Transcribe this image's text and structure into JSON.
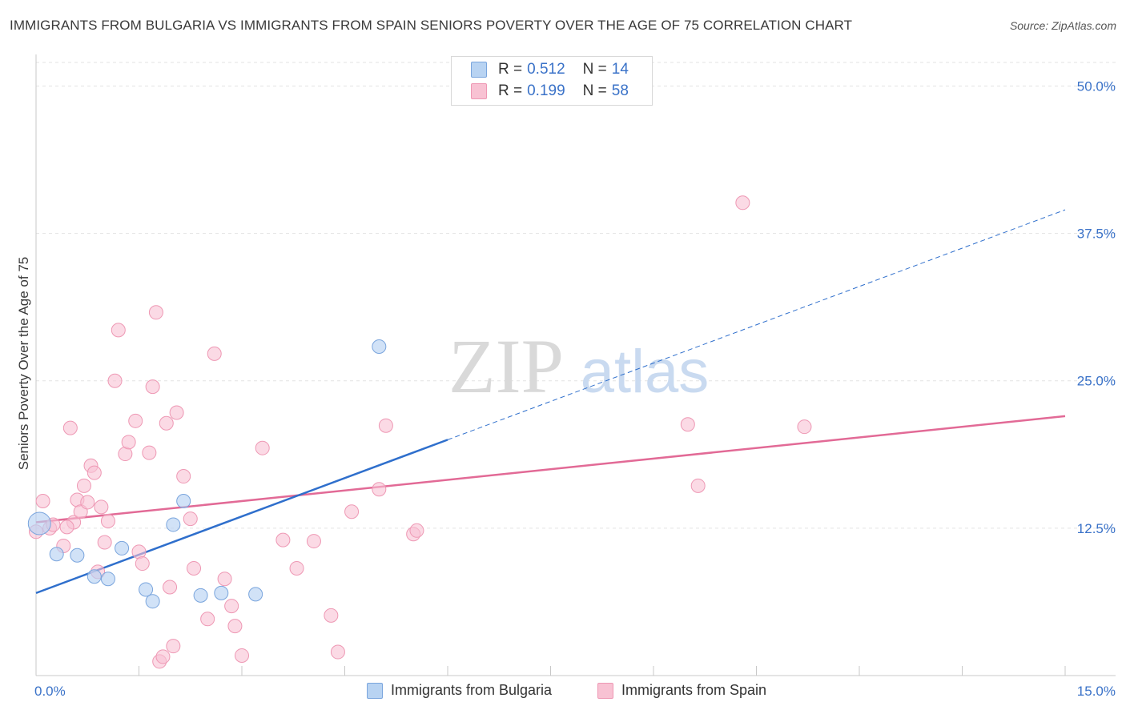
{
  "title": "IMMIGRANTS FROM BULGARIA VS IMMIGRANTS FROM SPAIN SENIORS POVERTY OVER THE AGE OF 75 CORRELATION CHART",
  "source": "Source: ZipAtlas.com",
  "watermark": {
    "zip": "ZIP",
    "atlas": "atlas"
  },
  "colors": {
    "bulgaria_fill": "#b8d3f2",
    "bulgaria_stroke": "#7aa5dd",
    "bulgaria_line": "#2f6fcc",
    "spain_fill": "#f8c2d3",
    "spain_stroke": "#ee98b4",
    "spain_line": "#e26a96",
    "axis_text": "#3a72c8",
    "grid": "#e3e3e3"
  },
  "legend_top": {
    "rows": [
      {
        "r_label": "R =",
        "r_value": "0.512",
        "n_label": "N =",
        "n_value": "14"
      },
      {
        "r_label": "R =",
        "r_value": "0.199",
        "n_label": "N =",
        "n_value": "58"
      }
    ]
  },
  "legend_bottom": {
    "bulgaria": "Immigrants from Bulgaria",
    "spain": "Immigrants from Spain"
  },
  "chart_data": {
    "type": "scatter",
    "title": "IMMIGRANTS FROM BULGARIA VS IMMIGRANTS FROM SPAIN SENIORS POVERTY OVER THE AGE OF 75 CORRELATION CHART",
    "xlabel": "",
    "ylabel": "Seniors Poverty Over the Age of 75",
    "xlim": [
      0,
      15
    ],
    "ylim": [
      0,
      52
    ],
    "x_tick_labels": [
      "0.0%",
      "15.0%"
    ],
    "y_ticks": [
      12.5,
      25.0,
      37.5,
      50.0
    ],
    "y_tick_labels": [
      "12.5%",
      "25.0%",
      "37.5%",
      "50.0%"
    ],
    "grid": true,
    "legend_placement": "top-center and bottom",
    "series": [
      {
        "name": "Immigrants from Bulgaria",
        "r": 0.512,
        "n": 14,
        "points": [
          [
            0.05,
            12.9
          ],
          [
            0.3,
            10.3
          ],
          [
            0.6,
            10.2
          ],
          [
            0.85,
            8.4
          ],
          [
            1.05,
            8.2
          ],
          [
            1.25,
            10.8
          ],
          [
            1.6,
            7.3
          ],
          [
            1.7,
            6.3
          ],
          [
            2.0,
            12.8
          ],
          [
            2.15,
            14.8
          ],
          [
            2.4,
            6.8
          ],
          [
            2.7,
            7.0
          ],
          [
            3.2,
            6.9
          ],
          [
            5.0,
            27.9
          ]
        ],
        "trend": {
          "x_start": 0.0,
          "y_start": 7.0,
          "x_solid_end": 6.0,
          "y_solid_end": 20.0,
          "x_dash_end": 15.0,
          "y_dash_end": 39.5
        }
      },
      {
        "name": "Immigrants from Spain",
        "r": 0.199,
        "n": 58,
        "points": [
          [
            0.0,
            12.2
          ],
          [
            0.1,
            14.8
          ],
          [
            0.2,
            12.5
          ],
          [
            0.25,
            12.8
          ],
          [
            0.4,
            11.0
          ],
          [
            0.5,
            21.0
          ],
          [
            0.55,
            13.0
          ],
          [
            0.6,
            14.9
          ],
          [
            0.65,
            13.9
          ],
          [
            0.7,
            16.1
          ],
          [
            0.75,
            14.7
          ],
          [
            0.8,
            17.8
          ],
          [
            0.85,
            17.2
          ],
          [
            0.9,
            8.8
          ],
          [
            0.95,
            14.3
          ],
          [
            1.0,
            11.3
          ],
          [
            1.05,
            13.1
          ],
          [
            1.15,
            25.0
          ],
          [
            1.2,
            29.3
          ],
          [
            1.3,
            18.8
          ],
          [
            1.35,
            19.8
          ],
          [
            1.45,
            21.6
          ],
          [
            1.5,
            10.5
          ],
          [
            1.55,
            9.5
          ],
          [
            1.65,
            18.9
          ],
          [
            1.7,
            24.5
          ],
          [
            1.75,
            30.8
          ],
          [
            1.8,
            1.2
          ],
          [
            1.85,
            1.6
          ],
          [
            1.9,
            21.4
          ],
          [
            1.95,
            7.5
          ],
          [
            2.0,
            2.5
          ],
          [
            2.05,
            22.3
          ],
          [
            2.15,
            16.9
          ],
          [
            2.25,
            13.3
          ],
          [
            2.3,
            9.1
          ],
          [
            2.5,
            4.8
          ],
          [
            2.6,
            27.3
          ],
          [
            2.75,
            8.2
          ],
          [
            2.85,
            5.9
          ],
          [
            2.9,
            4.2
          ],
          [
            3.0,
            1.7
          ],
          [
            3.3,
            19.3
          ],
          [
            3.6,
            11.5
          ],
          [
            3.8,
            9.1
          ],
          [
            4.05,
            11.4
          ],
          [
            4.3,
            5.1
          ],
          [
            4.4,
            2.0
          ],
          [
            4.6,
            13.9
          ],
          [
            5.0,
            15.8
          ],
          [
            5.1,
            21.2
          ],
          [
            5.5,
            12.0
          ],
          [
            5.55,
            12.3
          ],
          [
            9.5,
            21.3
          ],
          [
            9.65,
            16.1
          ],
          [
            10.3,
            40.1
          ],
          [
            11.2,
            21.1
          ],
          [
            0.45,
            12.6
          ]
        ],
        "trend": {
          "x_start": 0.0,
          "y_start": 13.0,
          "x_end": 15.0,
          "y_end": 22.0
        }
      }
    ]
  }
}
